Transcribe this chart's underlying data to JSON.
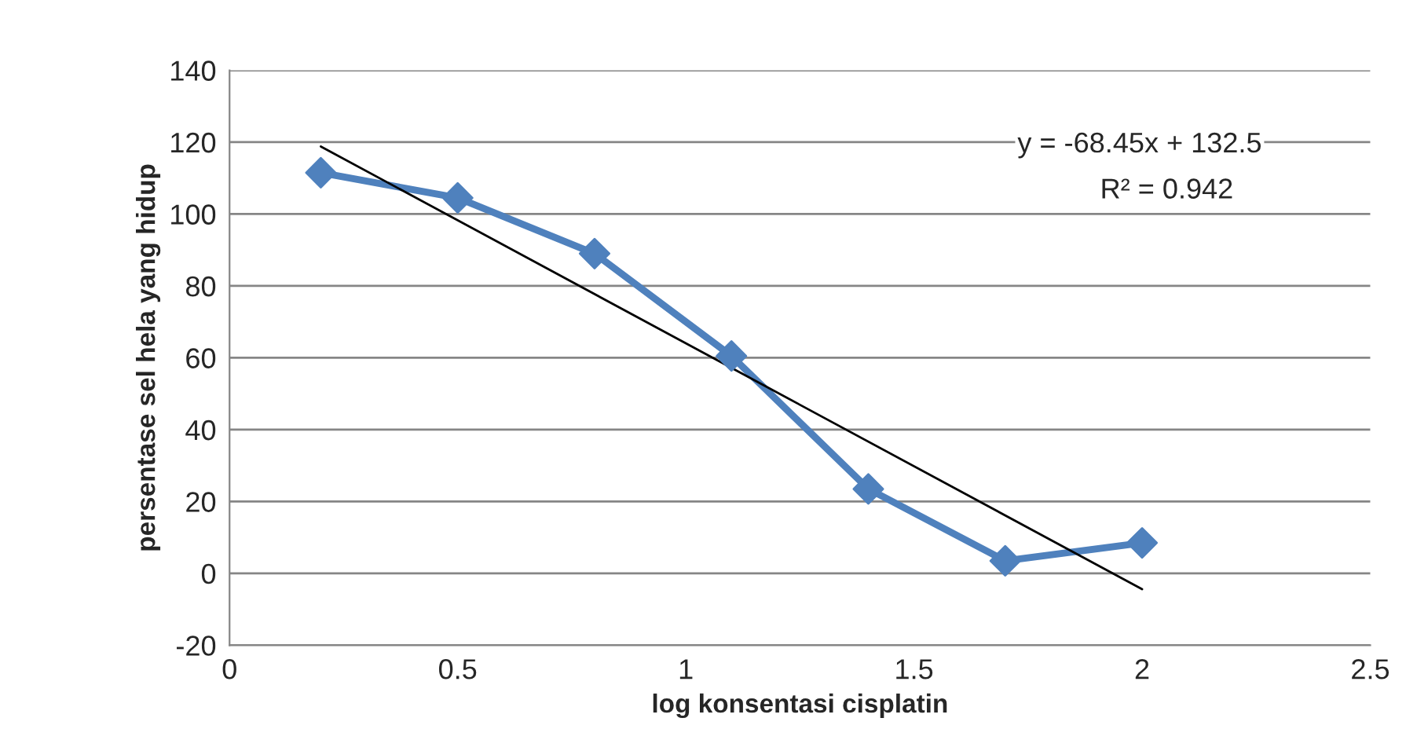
{
  "chart_data": {
    "type": "line",
    "xlabel": "log konsentasi cisplatin",
    "ylabel": "persentase sel hela yang hidup",
    "x": [
      0.2,
      0.5,
      0.8,
      1.1,
      1.4,
      1.7,
      2.0
    ],
    "series": [
      {
        "color": "#4f81bd",
        "values": [
          111.5,
          104.5,
          89,
          60.5,
          23.5,
          3.5,
          8.5
        ],
        "marker": "diamond"
      },
      {
        "type": "line",
        "color": "#000000",
        "x": [
          0.2,
          2.0
        ],
        "values": [
          118.8,
          -4.4
        ],
        "marker": "none"
      }
    ],
    "annotations": [
      "y = -68.45x + 132.5",
      "R² = 0.942"
    ],
    "xlim": [
      0,
      2.5
    ],
    "xticks": [
      0,
      0.5,
      1,
      1.5,
      2,
      2.5
    ],
    "ylim": [
      -20,
      140
    ],
    "yticks": [
      -20,
      0,
      20,
      40,
      60,
      80,
      100,
      120,
      140
    ],
    "grid": "y",
    "legend": false
  }
}
